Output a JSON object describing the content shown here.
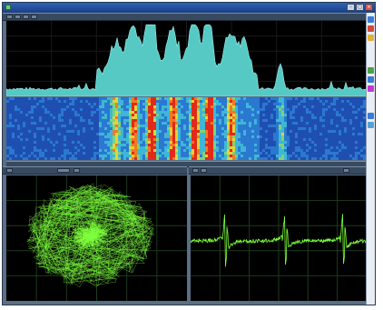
{
  "window": {
    "title": "",
    "controls": [
      "minimize",
      "maximize",
      "close"
    ],
    "control_glyphs": {
      "minimize": "–",
      "maximize": "□",
      "close": "×"
    }
  },
  "icons": {
    "app": "app-icon",
    "toolbar": [
      "zoom-icon",
      "grid-icon",
      "marker-icon",
      "settings-icon"
    ],
    "strip": [
      "play-icon",
      "stop-icon",
      "record-icon",
      "cursor-icon",
      "zoom-icon",
      "color-icon"
    ]
  },
  "colors": {
    "spectrum_fill": "#56c9c4",
    "spectrum_edge": "#9ff2ee",
    "waterfall_bg": "#1a4fb4",
    "trace_green": "#7dff3c",
    "grid": "#1f3a1f",
    "frame": "#5a6e86"
  },
  "panels": {
    "spectrum": {
      "type": "area"
    },
    "waterfall": {
      "type": "heatmap"
    },
    "constellation": {
      "type": "scatter"
    },
    "time_domain": {
      "type": "line"
    }
  }
}
